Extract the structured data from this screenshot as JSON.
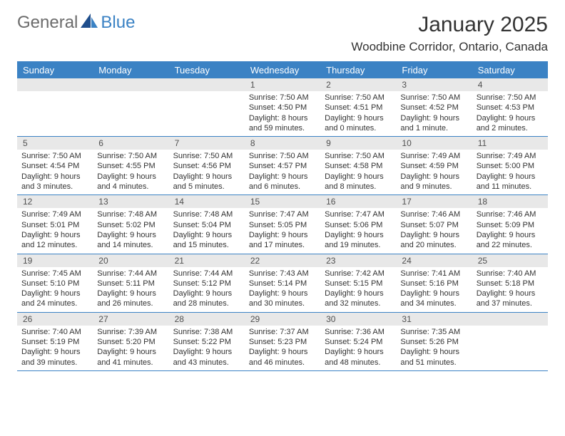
{
  "logo": {
    "text1": "General",
    "text2": "Blue"
  },
  "title": "January 2025",
  "location": "Woodbine Corridor, Ontario, Canada",
  "colors": {
    "accent": "#3b82c4",
    "header_bg": "#e8e8e8",
    "text": "#333333",
    "logo_gray": "#6b6b6b"
  },
  "day_headers": [
    "Sunday",
    "Monday",
    "Tuesday",
    "Wednesday",
    "Thursday",
    "Friday",
    "Saturday"
  ],
  "weeks": [
    [
      {
        "blank": true
      },
      {
        "blank": true
      },
      {
        "blank": true
      },
      {
        "num": "1",
        "sunrise": "Sunrise: 7:50 AM",
        "sunset": "Sunset: 4:50 PM",
        "day1": "Daylight: 8 hours",
        "day2": "and 59 minutes."
      },
      {
        "num": "2",
        "sunrise": "Sunrise: 7:50 AM",
        "sunset": "Sunset: 4:51 PM",
        "day1": "Daylight: 9 hours",
        "day2": "and 0 minutes."
      },
      {
        "num": "3",
        "sunrise": "Sunrise: 7:50 AM",
        "sunset": "Sunset: 4:52 PM",
        "day1": "Daylight: 9 hours",
        "day2": "and 1 minute."
      },
      {
        "num": "4",
        "sunrise": "Sunrise: 7:50 AM",
        "sunset": "Sunset: 4:53 PM",
        "day1": "Daylight: 9 hours",
        "day2": "and 2 minutes."
      }
    ],
    [
      {
        "num": "5",
        "sunrise": "Sunrise: 7:50 AM",
        "sunset": "Sunset: 4:54 PM",
        "day1": "Daylight: 9 hours",
        "day2": "and 3 minutes."
      },
      {
        "num": "6",
        "sunrise": "Sunrise: 7:50 AM",
        "sunset": "Sunset: 4:55 PM",
        "day1": "Daylight: 9 hours",
        "day2": "and 4 minutes."
      },
      {
        "num": "7",
        "sunrise": "Sunrise: 7:50 AM",
        "sunset": "Sunset: 4:56 PM",
        "day1": "Daylight: 9 hours",
        "day2": "and 5 minutes."
      },
      {
        "num": "8",
        "sunrise": "Sunrise: 7:50 AM",
        "sunset": "Sunset: 4:57 PM",
        "day1": "Daylight: 9 hours",
        "day2": "and 6 minutes."
      },
      {
        "num": "9",
        "sunrise": "Sunrise: 7:50 AM",
        "sunset": "Sunset: 4:58 PM",
        "day1": "Daylight: 9 hours",
        "day2": "and 8 minutes."
      },
      {
        "num": "10",
        "sunrise": "Sunrise: 7:49 AM",
        "sunset": "Sunset: 4:59 PM",
        "day1": "Daylight: 9 hours",
        "day2": "and 9 minutes."
      },
      {
        "num": "11",
        "sunrise": "Sunrise: 7:49 AM",
        "sunset": "Sunset: 5:00 PM",
        "day1": "Daylight: 9 hours",
        "day2": "and 11 minutes."
      }
    ],
    [
      {
        "num": "12",
        "sunrise": "Sunrise: 7:49 AM",
        "sunset": "Sunset: 5:01 PM",
        "day1": "Daylight: 9 hours",
        "day2": "and 12 minutes."
      },
      {
        "num": "13",
        "sunrise": "Sunrise: 7:48 AM",
        "sunset": "Sunset: 5:02 PM",
        "day1": "Daylight: 9 hours",
        "day2": "and 14 minutes."
      },
      {
        "num": "14",
        "sunrise": "Sunrise: 7:48 AM",
        "sunset": "Sunset: 5:04 PM",
        "day1": "Daylight: 9 hours",
        "day2": "and 15 minutes."
      },
      {
        "num": "15",
        "sunrise": "Sunrise: 7:47 AM",
        "sunset": "Sunset: 5:05 PM",
        "day1": "Daylight: 9 hours",
        "day2": "and 17 minutes."
      },
      {
        "num": "16",
        "sunrise": "Sunrise: 7:47 AM",
        "sunset": "Sunset: 5:06 PM",
        "day1": "Daylight: 9 hours",
        "day2": "and 19 minutes."
      },
      {
        "num": "17",
        "sunrise": "Sunrise: 7:46 AM",
        "sunset": "Sunset: 5:07 PM",
        "day1": "Daylight: 9 hours",
        "day2": "and 20 minutes."
      },
      {
        "num": "18",
        "sunrise": "Sunrise: 7:46 AM",
        "sunset": "Sunset: 5:09 PM",
        "day1": "Daylight: 9 hours",
        "day2": "and 22 minutes."
      }
    ],
    [
      {
        "num": "19",
        "sunrise": "Sunrise: 7:45 AM",
        "sunset": "Sunset: 5:10 PM",
        "day1": "Daylight: 9 hours",
        "day2": "and 24 minutes."
      },
      {
        "num": "20",
        "sunrise": "Sunrise: 7:44 AM",
        "sunset": "Sunset: 5:11 PM",
        "day1": "Daylight: 9 hours",
        "day2": "and 26 minutes."
      },
      {
        "num": "21",
        "sunrise": "Sunrise: 7:44 AM",
        "sunset": "Sunset: 5:12 PM",
        "day1": "Daylight: 9 hours",
        "day2": "and 28 minutes."
      },
      {
        "num": "22",
        "sunrise": "Sunrise: 7:43 AM",
        "sunset": "Sunset: 5:14 PM",
        "day1": "Daylight: 9 hours",
        "day2": "and 30 minutes."
      },
      {
        "num": "23",
        "sunrise": "Sunrise: 7:42 AM",
        "sunset": "Sunset: 5:15 PM",
        "day1": "Daylight: 9 hours",
        "day2": "and 32 minutes."
      },
      {
        "num": "24",
        "sunrise": "Sunrise: 7:41 AM",
        "sunset": "Sunset: 5:16 PM",
        "day1": "Daylight: 9 hours",
        "day2": "and 34 minutes."
      },
      {
        "num": "25",
        "sunrise": "Sunrise: 7:40 AM",
        "sunset": "Sunset: 5:18 PM",
        "day1": "Daylight: 9 hours",
        "day2": "and 37 minutes."
      }
    ],
    [
      {
        "num": "26",
        "sunrise": "Sunrise: 7:40 AM",
        "sunset": "Sunset: 5:19 PM",
        "day1": "Daylight: 9 hours",
        "day2": "and 39 minutes."
      },
      {
        "num": "27",
        "sunrise": "Sunrise: 7:39 AM",
        "sunset": "Sunset: 5:20 PM",
        "day1": "Daylight: 9 hours",
        "day2": "and 41 minutes."
      },
      {
        "num": "28",
        "sunrise": "Sunrise: 7:38 AM",
        "sunset": "Sunset: 5:22 PM",
        "day1": "Daylight: 9 hours",
        "day2": "and 43 minutes."
      },
      {
        "num": "29",
        "sunrise": "Sunrise: 7:37 AM",
        "sunset": "Sunset: 5:23 PM",
        "day1": "Daylight: 9 hours",
        "day2": "and 46 minutes."
      },
      {
        "num": "30",
        "sunrise": "Sunrise: 7:36 AM",
        "sunset": "Sunset: 5:24 PM",
        "day1": "Daylight: 9 hours",
        "day2": "and 48 minutes."
      },
      {
        "num": "31",
        "sunrise": "Sunrise: 7:35 AM",
        "sunset": "Sunset: 5:26 PM",
        "day1": "Daylight: 9 hours",
        "day2": "and 51 minutes."
      },
      {
        "blank": true
      }
    ]
  ]
}
